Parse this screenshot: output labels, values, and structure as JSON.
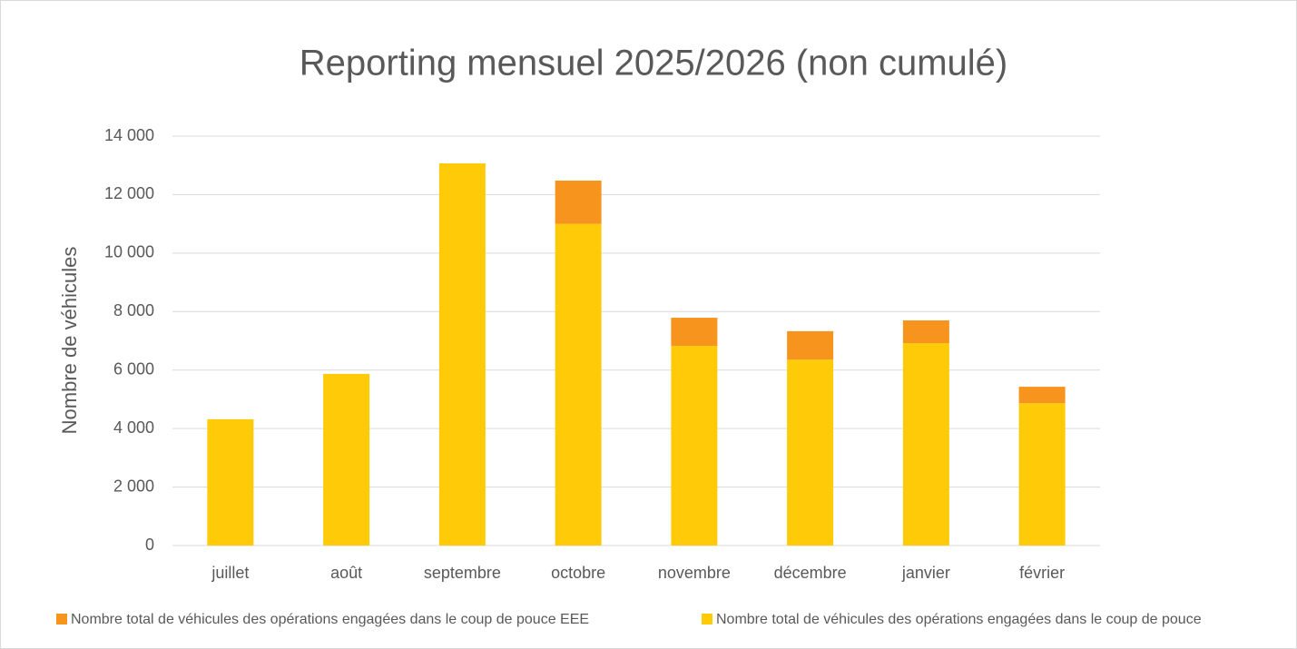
{
  "chart_data": {
    "type": "stacked_bar",
    "title": "Reporting mensuel 2025/2026 (non cumulé)",
    "y_label": "Nombre de véhicules",
    "categories": [
      "juillet",
      "août",
      "septembre",
      "octobre",
      "novembre",
      "décembre",
      "janvier",
      "février"
    ],
    "series": [
      {
        "name": "Nombre total de véhicules des opérations engagées dans le coup de pouce EEE",
        "color": "#f7941d",
        "values": [
          0,
          0,
          0,
          1480,
          960,
          970,
          780,
          560
        ]
      },
      {
        "name": "Nombre total de véhicules des opérations engagées dans le coup de pouce",
        "color": "#ffca08",
        "values": [
          4320,
          5870,
          13070,
          11000,
          6830,
          6360,
          6920,
          4870
        ]
      }
    ],
    "ylim": [
      0,
      14000
    ],
    "yticks": [
      0,
      {
        "value": 2000,
        "label": "2 000"
      },
      {
        "value": 4000,
        "label": "4 000"
      },
      {
        "value": 6000,
        "label": "6 000"
      },
      {
        "value": 8000,
        "label": "8 000"
      },
      {
        "value": 10000,
        "label": "10 000"
      },
      {
        "value": 12000,
        "label": "12 000"
      },
      {
        "value": 14000,
        "label": "14 000"
      }
    ],
    "grid": true,
    "legend": "bottom"
  }
}
